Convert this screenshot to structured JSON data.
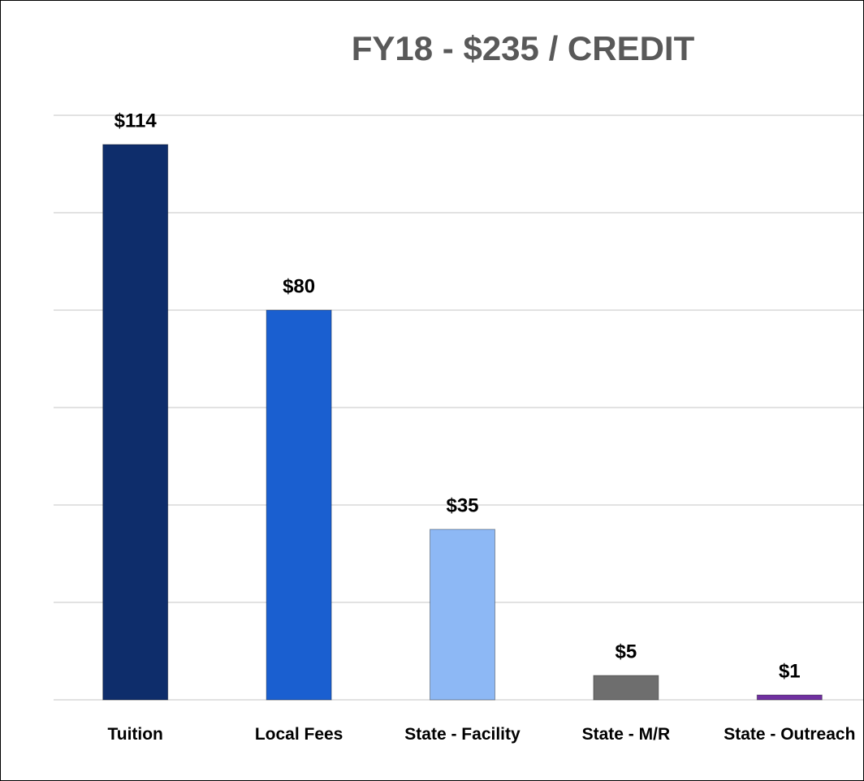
{
  "chart_data": {
    "type": "bar",
    "title": "FY18 - $235 / CREDIT",
    "categories": [
      "Tuition",
      "Local Fees",
      "State - Facility",
      "State - M/R",
      "State - Outreach"
    ],
    "values": [
      114,
      80,
      35,
      5,
      1
    ],
    "value_labels": [
      "$114",
      "$80",
      "$35",
      "$5",
      "$1"
    ],
    "colors": [
      "#0e2d6b",
      "#1a5fd0",
      "#8db8f5",
      "#6e6e6e",
      "#7030a0"
    ],
    "ylim": [
      0,
      120
    ],
    "yticks": [
      0,
      20,
      40,
      60,
      80,
      100,
      120
    ],
    "grid": true
  }
}
